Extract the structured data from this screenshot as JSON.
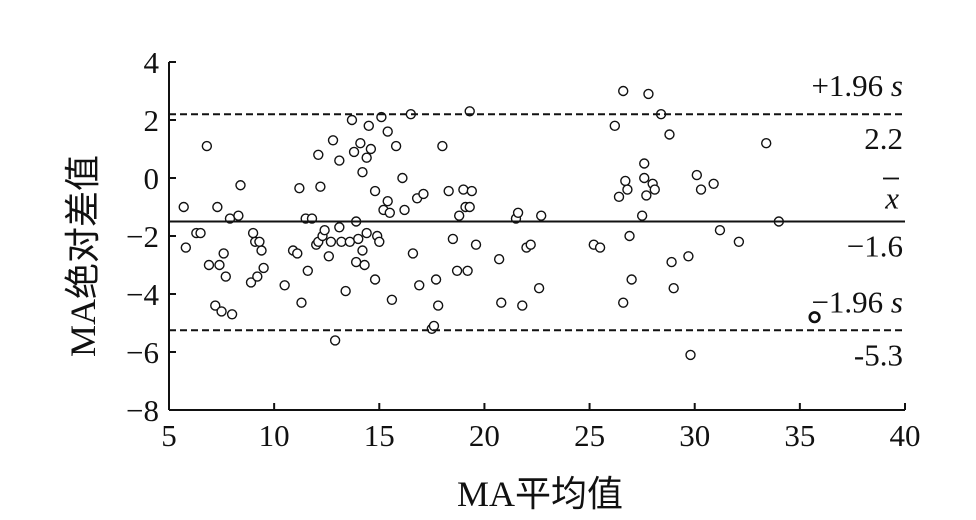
{
  "chart_data": {
    "type": "scatter",
    "title": "",
    "xlabel": "MA平均值",
    "ylabel": "MA绝对差值",
    "xlim": [
      5,
      40
    ],
    "ylim": [
      -8,
      4
    ],
    "xticks": [
      "5",
      "10",
      "15",
      "20",
      "25",
      "30",
      "35",
      "40"
    ],
    "yticks": [
      "4",
      "2",
      "0",
      "−2",
      "−4",
      "−6",
      "−8"
    ],
    "grid": false,
    "reference_lines": [
      {
        "name": "upper_loa",
        "y": 2.2,
        "style": "dashed",
        "label": "+1.96 s",
        "value_label": "2.2"
      },
      {
        "name": "mean",
        "y": -1.5,
        "style": "solid",
        "label": "x",
        "value_label": "−1.6"
      },
      {
        "name": "lower_loa",
        "y": -5.25,
        "style": "dashed",
        "label": "−1.96 s",
        "value_label": "-5.3"
      }
    ],
    "series": [
      {
        "points": [
          [
            5.7,
            -1.0
          ],
          [
            5.8,
            -2.4
          ],
          [
            6.3,
            -1.9
          ],
          [
            6.5,
            -1.9
          ],
          [
            6.8,
            1.1
          ],
          [
            6.9,
            -3.0
          ],
          [
            7.2,
            -4.4
          ],
          [
            7.3,
            -1.0
          ],
          [
            7.4,
            -3.0
          ],
          [
            7.5,
            -4.6
          ],
          [
            7.6,
            -2.6
          ],
          [
            7.7,
            -3.4
          ],
          [
            7.9,
            -1.4
          ],
          [
            8.0,
            -4.7
          ],
          [
            8.3,
            -1.3
          ],
          [
            8.4,
            -0.25
          ],
          [
            8.9,
            -3.6
          ],
          [
            9.0,
            -1.9
          ],
          [
            9.1,
            -2.2
          ],
          [
            9.2,
            -3.4
          ],
          [
            9.3,
            -2.2
          ],
          [
            9.4,
            -2.5
          ],
          [
            9.5,
            -3.1
          ],
          [
            10.5,
            -3.7
          ],
          [
            10.9,
            -2.5
          ],
          [
            11.1,
            -2.6
          ],
          [
            11.2,
            -0.35
          ],
          [
            11.3,
            -4.3
          ],
          [
            11.5,
            -1.4
          ],
          [
            11.6,
            -3.2
          ],
          [
            11.8,
            -1.4
          ],
          [
            12.0,
            -2.3
          ],
          [
            12.1,
            -2.2
          ],
          [
            12.1,
            0.8
          ],
          [
            12.2,
            -0.3
          ],
          [
            12.3,
            -2.0
          ],
          [
            12.4,
            -1.8
          ],
          [
            12.6,
            -2.7
          ],
          [
            12.7,
            -2.2
          ],
          [
            12.8,
            1.3
          ],
          [
            12.9,
            -5.6
          ],
          [
            13.1,
            0.6
          ],
          [
            13.1,
            -1.7
          ],
          [
            13.2,
            -2.2
          ],
          [
            13.4,
            -3.9
          ],
          [
            13.6,
            -2.2
          ],
          [
            13.7,
            2.0
          ],
          [
            13.8,
            0.9
          ],
          [
            13.9,
            -1.5
          ],
          [
            13.9,
            -2.9
          ],
          [
            14.0,
            -2.1
          ],
          [
            14.1,
            1.2
          ],
          [
            14.2,
            0.2
          ],
          [
            14.2,
            -2.5
          ],
          [
            14.3,
            -3.0
          ],
          [
            14.4,
            0.7
          ],
          [
            14.4,
            -1.9
          ],
          [
            14.5,
            1.8
          ],
          [
            14.6,
            1.0
          ],
          [
            14.8,
            -3.5
          ],
          [
            14.8,
            -0.45
          ],
          [
            14.9,
            -2.0
          ],
          [
            15.0,
            -2.2
          ],
          [
            15.1,
            2.1
          ],
          [
            15.2,
            -1.1
          ],
          [
            15.4,
            -0.8
          ],
          [
            15.4,
            1.6
          ],
          [
            15.5,
            -1.2
          ],
          [
            15.6,
            -4.2
          ],
          [
            15.8,
            1.1
          ],
          [
            16.1,
            0.0
          ],
          [
            16.2,
            -1.1
          ],
          [
            16.5,
            2.2
          ],
          [
            16.6,
            -2.6
          ],
          [
            16.8,
            -0.7
          ],
          [
            16.9,
            -3.7
          ],
          [
            17.1,
            -0.55
          ],
          [
            17.5,
            -5.2
          ],
          [
            17.6,
            -5.1
          ],
          [
            17.7,
            -3.5
          ],
          [
            17.8,
            -4.4
          ],
          [
            18.0,
            1.1
          ],
          [
            18.3,
            -0.45
          ],
          [
            18.5,
            -2.1
          ],
          [
            18.7,
            -3.2
          ],
          [
            18.8,
            -1.3
          ],
          [
            19.0,
            -0.4
          ],
          [
            19.1,
            -1.0
          ],
          [
            19.2,
            -3.2
          ],
          [
            19.3,
            2.3
          ],
          [
            19.3,
            -1.0
          ],
          [
            19.4,
            -0.45
          ],
          [
            19.6,
            -2.3
          ],
          [
            20.7,
            -2.8
          ],
          [
            20.8,
            -4.3
          ],
          [
            21.5,
            -1.4
          ],
          [
            21.6,
            -1.2
          ],
          [
            21.8,
            -4.4
          ],
          [
            22.0,
            -2.4
          ],
          [
            22.2,
            -2.3
          ],
          [
            22.6,
            -3.8
          ],
          [
            22.7,
            -1.3
          ],
          [
            25.2,
            -2.3
          ],
          [
            25.5,
            -2.4
          ],
          [
            26.2,
            1.8
          ],
          [
            26.4,
            -0.65
          ],
          [
            26.6,
            3.0
          ],
          [
            26.6,
            -4.3
          ],
          [
            26.7,
            -0.1
          ],
          [
            26.8,
            -0.4
          ],
          [
            26.9,
            -2.0
          ],
          [
            27.0,
            -3.5
          ],
          [
            27.5,
            -1.3
          ],
          [
            27.6,
            0.5
          ],
          [
            27.6,
            0.0
          ],
          [
            27.7,
            -0.6
          ],
          [
            27.8,
            2.9
          ],
          [
            28.0,
            -0.2
          ],
          [
            28.1,
            -0.4
          ],
          [
            28.4,
            2.2
          ],
          [
            28.8,
            1.5
          ],
          [
            28.9,
            -2.9
          ],
          [
            29.0,
            -3.8
          ],
          [
            29.7,
            -2.7
          ],
          [
            29.8,
            -6.1
          ],
          [
            30.1,
            0.1
          ],
          [
            30.3,
            -0.4
          ],
          [
            30.9,
            -0.2
          ],
          [
            31.2,
            -1.8
          ],
          [
            32.1,
            -2.2
          ],
          [
            33.4,
            1.2
          ],
          [
            34.0,
            -1.5
          ]
        ]
      },
      {
        "points": [
          [
            35.7,
            -4.8
          ]
        ]
      }
    ]
  }
}
